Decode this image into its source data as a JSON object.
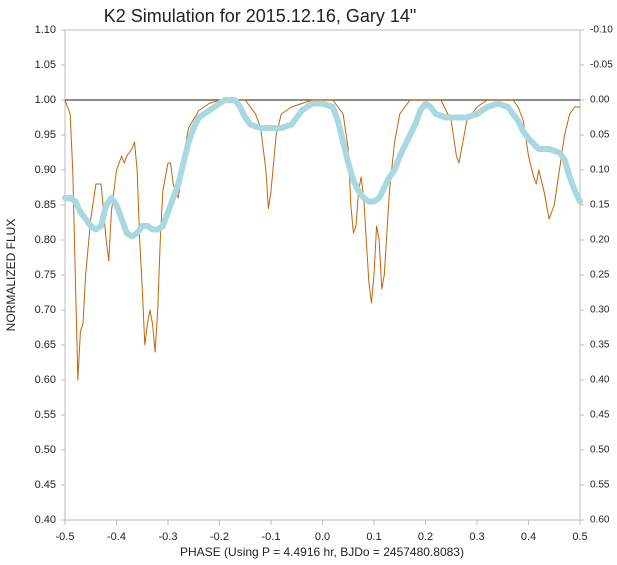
{
  "chart_data": {
    "type": "line",
    "title": "K2 Simulation for 2015.12.16, Gary 14\"",
    "xlabel": "PHASE (Using P = 4.4916 hr, BJDo = 2457480.8083)",
    "ylabel": "NORMALIZED FLUX",
    "xlim": [
      -0.5,
      0.5
    ],
    "xticks": [
      -0.5,
      -0.4,
      -0.3,
      -0.2,
      -0.1,
      {
        "value": 0,
        "label": "0.0"
      },
      0.1,
      0.2,
      0.3,
      0.4,
      0.5
    ],
    "ylim": [
      0.4,
      1.1
    ],
    "yticks": [
      {
        "value": 0.4,
        "label": "0.40"
      },
      {
        "value": 0.45,
        "label": "0.45"
      },
      {
        "value": 0.5,
        "label": "0.50"
      },
      {
        "value": 0.55,
        "label": "0.55"
      },
      {
        "value": 0.6,
        "label": "0.60"
      },
      {
        "value": 0.65,
        "label": "0.65"
      },
      {
        "value": 0.7,
        "label": "0.70"
      },
      {
        "value": 0.75,
        "label": "0.75"
      },
      {
        "value": 0.8,
        "label": "0.80"
      },
      {
        "value": 0.85,
        "label": "0.85"
      },
      {
        "value": 0.9,
        "label": "0.90"
      },
      {
        "value": 0.95,
        "label": "0.95"
      },
      {
        "value": 1,
        "label": "1.00"
      },
      {
        "value": 1.05,
        "label": "1.05"
      },
      {
        "value": 1.1,
        "label": "1.10"
      }
    ],
    "y2lim": [
      0.6,
      -0.1
    ],
    "y2ticks": [
      {
        "value": 0.6,
        "label": "0.60"
      },
      {
        "value": 0.55,
        "label": "0.55"
      },
      {
        "value": 0.5,
        "label": "0.50"
      },
      {
        "value": 0.45,
        "label": "0.45"
      },
      {
        "value": 0.4,
        "label": "0.40"
      },
      {
        "value": 0.35,
        "label": "0.35"
      },
      {
        "value": 0.3,
        "label": "0.30"
      },
      {
        "value": 0.25,
        "label": "0.25"
      },
      {
        "value": 0.2,
        "label": "0.20"
      },
      {
        "value": 0.15,
        "label": "0.15"
      },
      {
        "value": 0.1,
        "label": "0.10"
      },
      {
        "value": 0.05,
        "label": "0.05"
      },
      {
        "value": 0,
        "label": "0.00"
      },
      {
        "value": -0.05,
        "label": "-0.05"
      },
      {
        "value": -0.1,
        "label": "-0.10"
      }
    ],
    "reference_y": 1,
    "grid": false,
    "series": [
      {
        "color": "#c0650a",
        "width": 1,
        "x": [
          -0.5,
          -0.49,
          -0.485,
          -0.48,
          -0.475,
          -0.47,
          -0.465,
          -0.46,
          -0.45,
          -0.44,
          -0.43,
          -0.425,
          -0.42,
          -0.415,
          -0.41,
          -0.4,
          -0.39,
          -0.385,
          -0.38,
          -0.37,
          -0.365,
          -0.36,
          -0.355,
          -0.35,
          -0.345,
          -0.34,
          -0.335,
          -0.33,
          -0.325,
          -0.32,
          -0.315,
          -0.31,
          -0.3,
          -0.295,
          -0.29,
          -0.28,
          -0.27,
          -0.26,
          -0.24,
          -0.22,
          -0.2,
          -0.15,
          -0.13,
          -0.12,
          -0.11,
          -0.105,
          -0.1,
          -0.09,
          -0.08,
          -0.06,
          -0.02,
          0.02,
          0.04,
          0.05,
          0.055,
          0.06,
          0.065,
          0.07,
          0.075,
          0.08,
          0.085,
          0.09,
          0.095,
          0.1,
          0.105,
          0.11,
          0.115,
          0.12,
          0.13,
          0.14,
          0.15,
          0.17,
          0.23,
          0.25,
          0.26,
          0.265,
          0.27,
          0.28,
          0.3,
          0.32,
          0.37,
          0.38,
          0.39,
          0.4,
          0.41,
          0.415,
          0.42,
          0.43,
          0.44,
          0.45,
          0.46,
          0.47,
          0.48,
          0.49,
          0.5
        ],
        "values": [
          1.0,
          0.98,
          0.9,
          0.75,
          0.6,
          0.67,
          0.68,
          0.75,
          0.83,
          0.88,
          0.88,
          0.84,
          0.8,
          0.77,
          0.84,
          0.9,
          0.92,
          0.91,
          0.92,
          0.93,
          0.94,
          0.9,
          0.8,
          0.73,
          0.65,
          0.68,
          0.7,
          0.68,
          0.64,
          0.7,
          0.8,
          0.87,
          0.91,
          0.91,
          0.88,
          0.86,
          0.92,
          0.96,
          0.985,
          0.995,
          1.0,
          1.0,
          0.98,
          0.96,
          0.9,
          0.845,
          0.87,
          0.95,
          0.98,
          0.99,
          1.0,
          1.0,
          0.98,
          0.93,
          0.85,
          0.81,
          0.82,
          0.87,
          0.89,
          0.86,
          0.8,
          0.74,
          0.71,
          0.75,
          0.82,
          0.8,
          0.73,
          0.75,
          0.87,
          0.94,
          0.98,
          1.0,
          1.0,
          0.97,
          0.92,
          0.91,
          0.93,
          0.97,
          0.99,
          1.0,
          1.0,
          0.99,
          0.97,
          0.92,
          0.89,
          0.88,
          0.9,
          0.87,
          0.83,
          0.85,
          0.9,
          0.95,
          0.98,
          0.99,
          0.99
        ]
      },
      {
        "color": "#a8d8e0",
        "width": 6,
        "x": [
          -0.5,
          -0.49,
          -0.48,
          -0.47,
          -0.46,
          -0.45,
          -0.44,
          -0.43,
          -0.42,
          -0.41,
          -0.4,
          -0.39,
          -0.38,
          -0.37,
          -0.36,
          -0.35,
          -0.34,
          -0.33,
          -0.32,
          -0.31,
          -0.3,
          -0.29,
          -0.28,
          -0.27,
          -0.26,
          -0.25,
          -0.24,
          -0.23,
          -0.22,
          -0.21,
          -0.2,
          -0.19,
          -0.18,
          -0.17,
          -0.16,
          -0.15,
          -0.14,
          -0.13,
          -0.12,
          -0.1,
          -0.08,
          -0.06,
          -0.04,
          -0.02,
          0,
          0.02,
          0.03,
          0.04,
          0.05,
          0.06,
          0.07,
          0.08,
          0.09,
          0.1,
          0.11,
          0.12,
          0.13,
          0.14,
          0.15,
          0.16,
          0.17,
          0.18,
          0.19,
          0.2,
          0.21,
          0.22,
          0.24,
          0.26,
          0.28,
          0.3,
          0.32,
          0.34,
          0.36,
          0.38,
          0.39,
          0.4,
          0.42,
          0.44,
          0.46,
          0.47,
          0.48,
          0.49,
          0.5
        ],
        "values": [
          0.86,
          0.86,
          0.855,
          0.84,
          0.83,
          0.82,
          0.815,
          0.82,
          0.85,
          0.86,
          0.85,
          0.83,
          0.81,
          0.805,
          0.81,
          0.82,
          0.82,
          0.815,
          0.815,
          0.82,
          0.84,
          0.86,
          0.88,
          0.91,
          0.94,
          0.96,
          0.975,
          0.98,
          0.985,
          0.99,
          0.995,
          1.0,
          1.0,
          1.0,
          0.99,
          0.975,
          0.965,
          0.962,
          0.96,
          0.96,
          0.96,
          0.965,
          0.985,
          0.995,
          0.995,
          0.99,
          0.97,
          0.94,
          0.91,
          0.885,
          0.87,
          0.86,
          0.855,
          0.855,
          0.86,
          0.875,
          0.89,
          0.9,
          0.92,
          0.935,
          0.95,
          0.965,
          0.985,
          0.995,
          0.99,
          0.98,
          0.975,
          0.975,
          0.975,
          0.98,
          0.99,
          0.995,
          0.99,
          0.97,
          0.955,
          0.945,
          0.93,
          0.93,
          0.925,
          0.915,
          0.89,
          0.87,
          0.855
        ]
      }
    ]
  }
}
